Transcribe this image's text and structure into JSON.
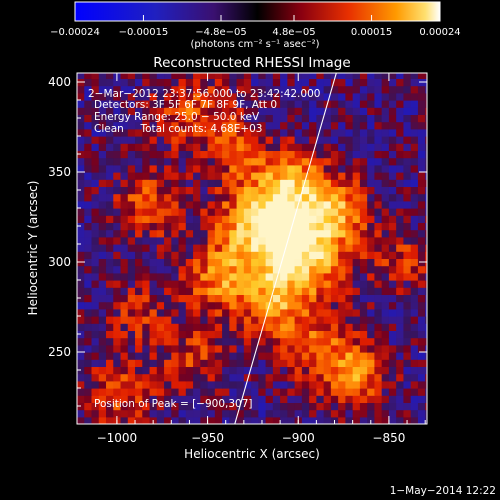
{
  "chart_data": {
    "type": "heatmap",
    "title": "Reconstructed RHESSI Image",
    "xlabel": "Heliocentric X (arcsec)",
    "ylabel": "Heliocentric Y (arcsec)",
    "xlim": [
      -1022,
      -829
    ],
    "ylim": [
      210,
      405
    ],
    "x_ticks": [
      -1000,
      -950,
      -900,
      -850
    ],
    "x_tick_labels": [
      "−1000",
      "−950",
      "−900",
      "−850"
    ],
    "y_ticks": [
      250,
      300,
      350,
      400
    ],
    "y_tick_labels": [
      "250",
      "300",
      "350",
      "400"
    ],
    "colorbar": {
      "range": [
        -0.00024,
        0.00024
      ],
      "ticks": [
        -0.00024,
        -0.00015,
        -4.8e-05,
        4.8e-05,
        0.00015,
        0.00024
      ],
      "tick_labels": [
        "−0.00024",
        "−0.00015",
        "−4.8e−05",
        "4.8e−05",
        "0.00015",
        "0.00024"
      ],
      "units": "(photons cm⁻² s⁻¹ asec⁻²)"
    },
    "annotations": [
      "2−Mar−2012 23:37:56.000 to 23:42:42.000",
      "Detectors: 3F 5F 6F 7F 8F 9F, Att 0",
      "Energy Range: 25.0 − 50.0 keV",
      "Clean     Total counts: 4.68E+03",
      "Position of Peak = [−900,307]"
    ],
    "peak": {
      "x": -900,
      "y": 307
    },
    "limb_line": [
      {
        "x": -935,
        "y": 210
      },
      {
        "x": -879,
        "y": 405
      }
    ],
    "colors": {
      "low": "#0000ff",
      "neutral": "#2b0e57",
      "mid": "#e02000",
      "high": "#ffa000",
      "max": "#ffffff"
    },
    "grid": "off",
    "legend": "none"
  },
  "footer": {
    "date": "1−May−2014 12:22"
  }
}
